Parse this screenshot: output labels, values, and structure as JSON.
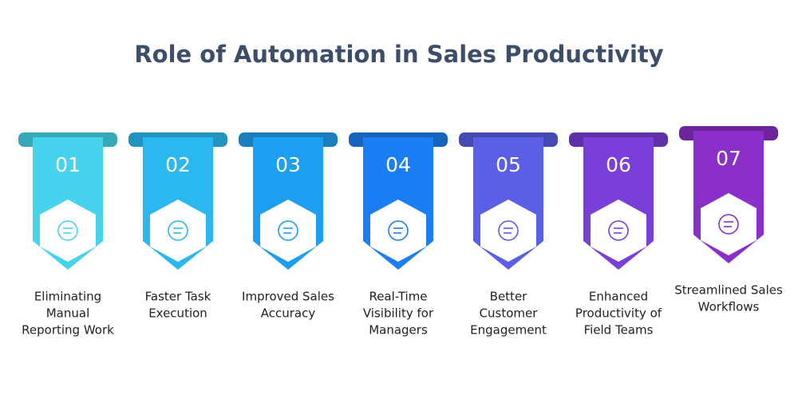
{
  "header": {
    "title": "Role of Automation in Sales Productivity"
  },
  "items": [
    {
      "number": "01",
      "label_lines": [
        "Eliminating",
        "Manual",
        "Reporting Work"
      ],
      "color": "#47d3ee",
      "tab_color": "#36a9b8"
    },
    {
      "number": "02",
      "label_lines": [
        "Faster Task",
        "Execution"
      ],
      "color": "#2bb7f0",
      "tab_color": "#2292bf"
    },
    {
      "number": "03",
      "label_lines": [
        "Improved Sales",
        "Accuracy"
      ],
      "color": "#1c9ef2",
      "tab_color": "#1a7dbd"
    },
    {
      "number": "04",
      "label_lines": [
        "Real-Time",
        "Visibility for",
        "Managers"
      ],
      "color": "#1b7ff3",
      "tab_color": "#1763be"
    },
    {
      "number": "05",
      "label_lines": [
        "Better",
        "Customer",
        "Engagement"
      ],
      "color": "#5b5fe6",
      "tab_color": "#4649b4"
    },
    {
      "number": "06",
      "label_lines": [
        "Enhanced",
        "Productivity of",
        "Field Teams"
      ],
      "color": "#7a3fd9",
      "tab_color": "#5f31a9"
    },
    {
      "number": "07",
      "label_lines": [
        "Streamlined Sales",
        "Workflows"
      ],
      "color": "#8b2fca",
      "tab_color": "#6c259d"
    }
  ]
}
